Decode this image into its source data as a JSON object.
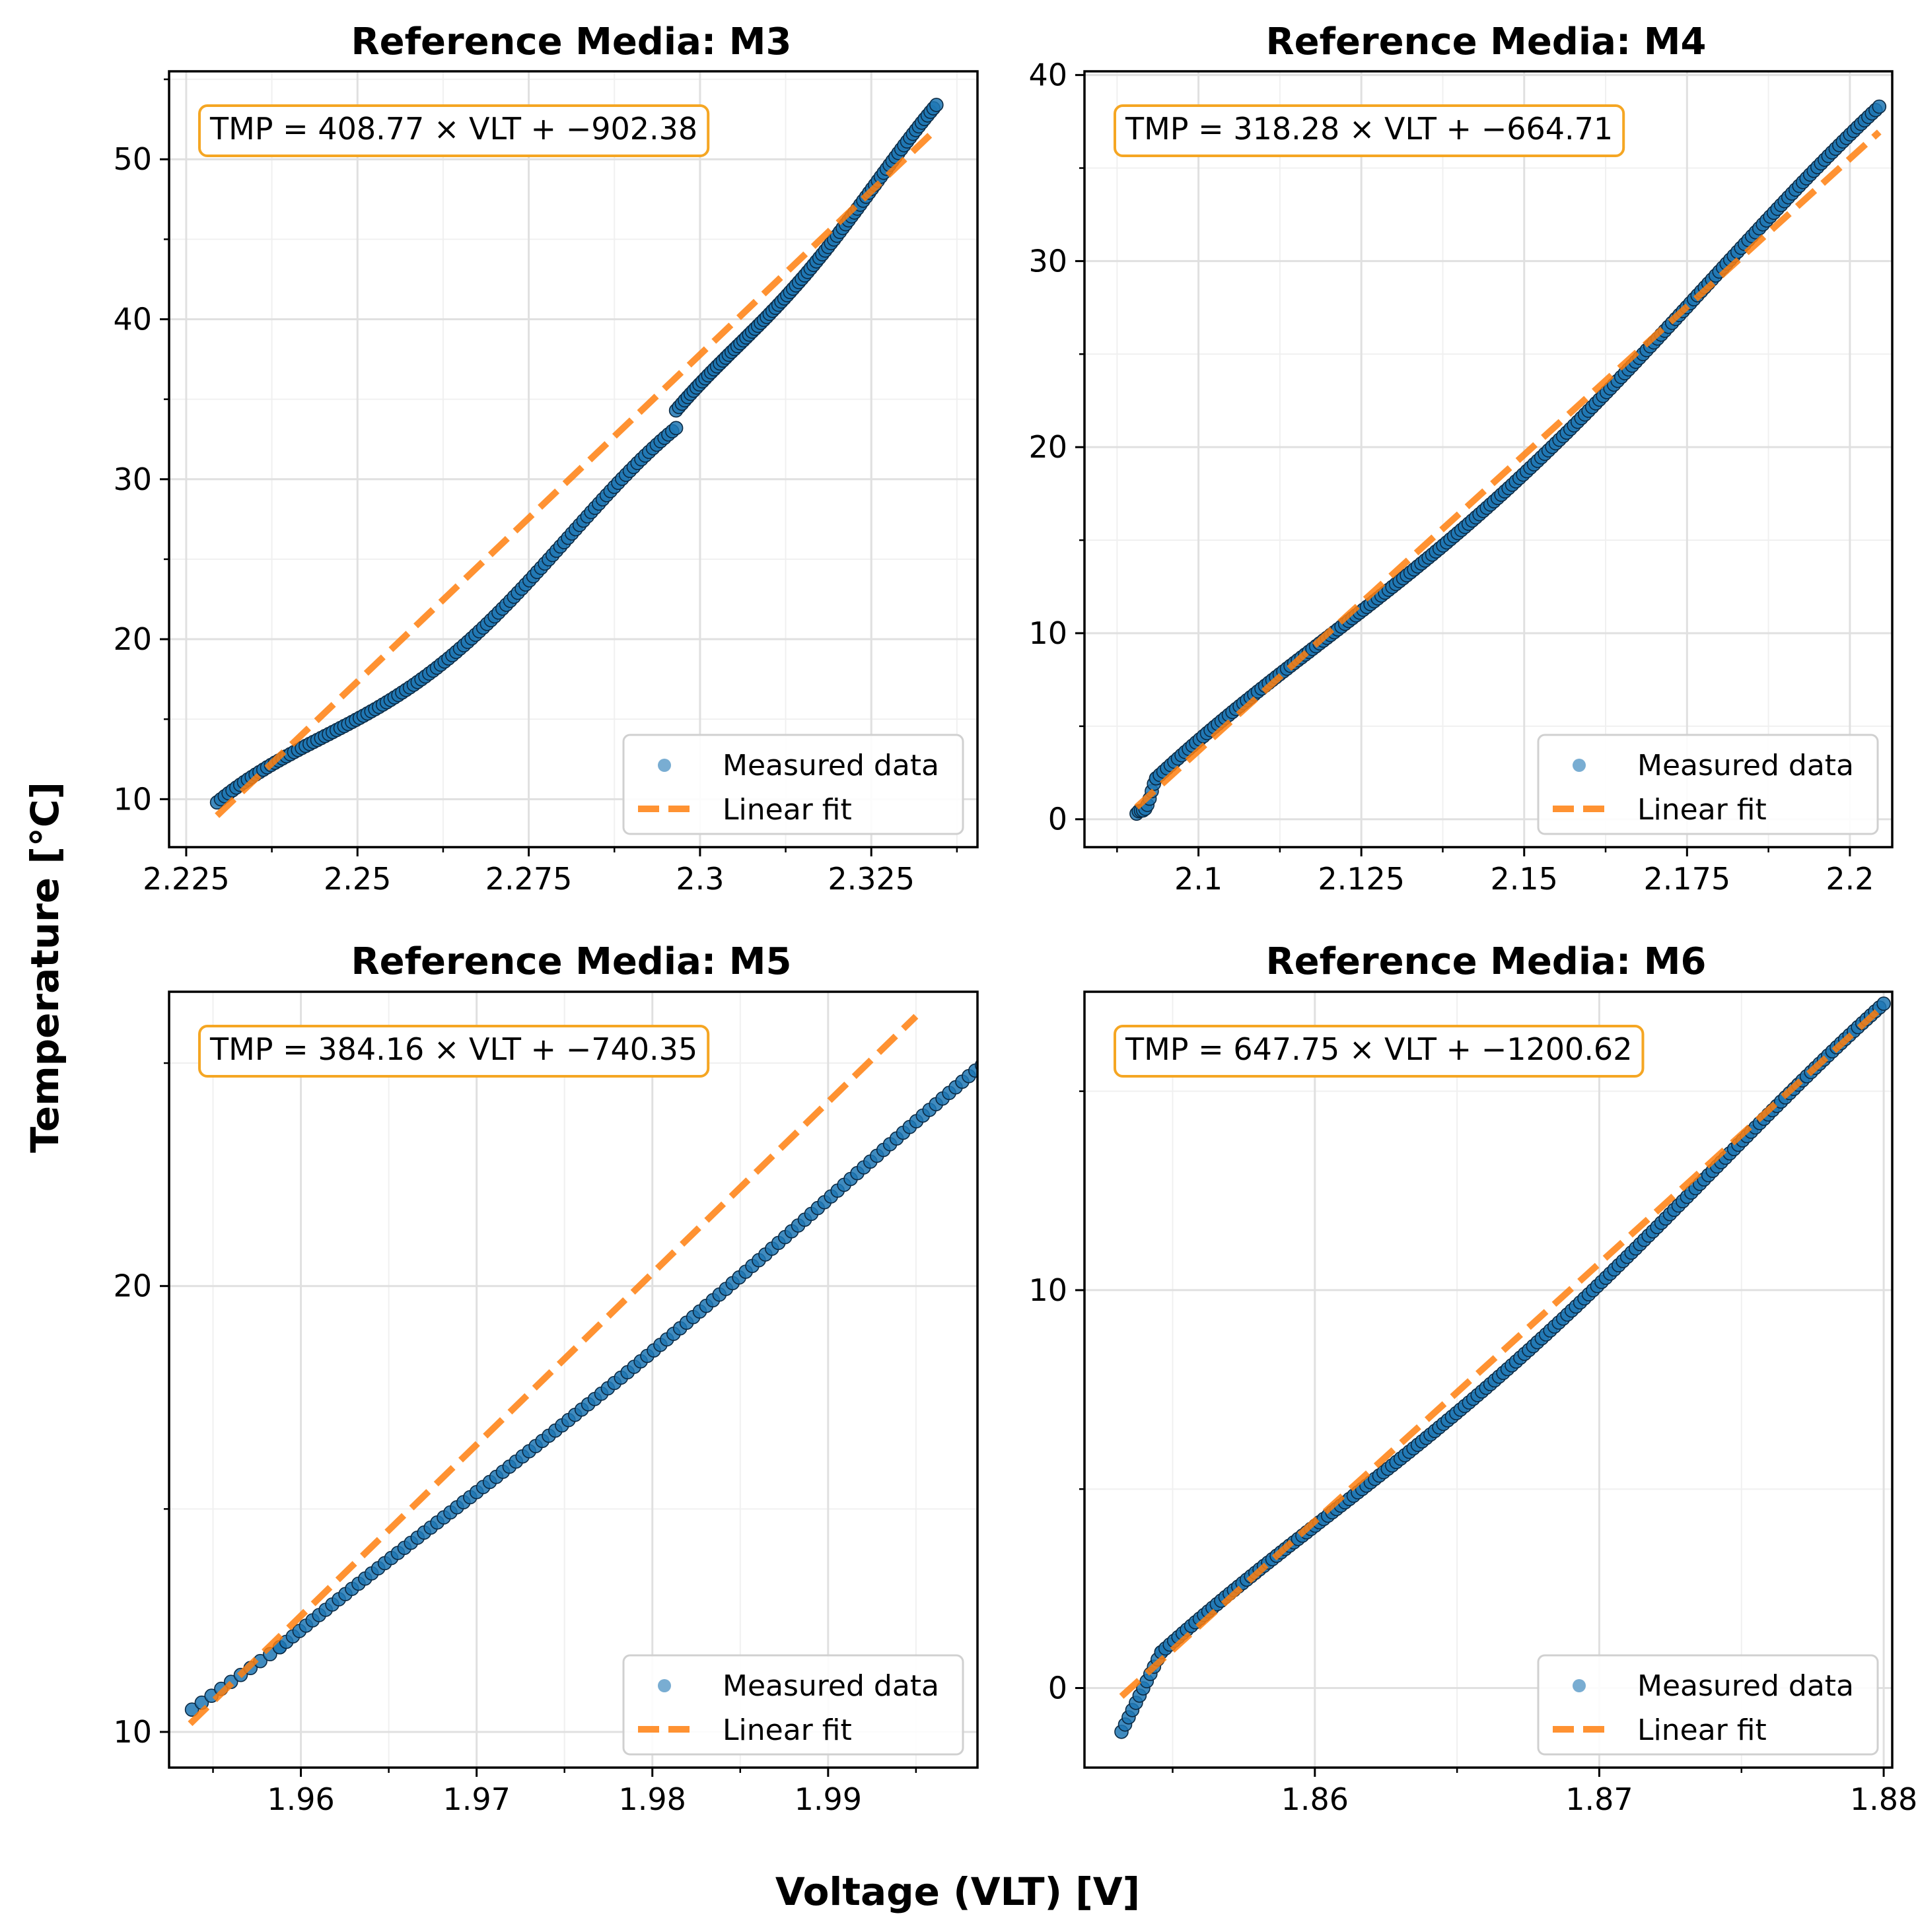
{
  "figure": {
    "xlabel": "Voltage (VLT) [V]",
    "ylabel": "Temperature [°C]"
  },
  "colors": {
    "points": "#1f77b4",
    "fit": "#ff7f0e",
    "annotation_border": "#f5a623",
    "grid": "#e0e0e0"
  },
  "legend": {
    "measured": "Measured data",
    "fit": "Linear fit"
  },
  "chart_data": [
    {
      "type": "scatter",
      "title": "Reference Media: M3",
      "equation": "TMP = 408.77 × VLT + −902.38",
      "slope": 408.77,
      "intercept": -902.38,
      "xlim": [
        2.2225,
        2.3405
      ],
      "ylim": [
        7,
        55.5
      ],
      "xticks": [
        2.225,
        2.25,
        2.275,
        2.3,
        2.325
      ],
      "xticklabels": [
        "2.225",
        "2.25",
        "2.275",
        "2.3",
        "2.325"
      ],
      "yticks": [
        10,
        20,
        30,
        40,
        50
      ],
      "yticklabels": [
        "10",
        "20",
        "30",
        "40",
        "50"
      ],
      "xminor": [
        2.2375,
        2.2625,
        2.2875,
        2.3125,
        2.3375
      ],
      "yminor": [
        15,
        25,
        35,
        45,
        55
      ],
      "fit_x": [
        2.2295,
        2.3345
      ],
      "segments": [
        {
          "x0": 2.2295,
          "x1": 2.2965,
          "y0": 9.8,
          "y1": 33.2,
          "n": 120,
          "bow": 1.4
        },
        {
          "x0": 2.2965,
          "x1": 2.3345,
          "y0": 34.3,
          "y1": 53.4,
          "n": 90,
          "bow": 0.5
        }
      ]
    },
    {
      "type": "scatter",
      "title": "Reference Media: M4",
      "equation": "TMP = 318.28 × VLT + −664.71",
      "slope": 318.28,
      "intercept": -664.71,
      "xlim": [
        2.0825,
        2.2065
      ],
      "ylim": [
        -1.5,
        40.2
      ],
      "xticks": [
        2.1,
        2.125,
        2.15,
        2.175,
        2.2
      ],
      "xticklabels": [
        "2.1",
        "2.125",
        "2.15",
        "2.175",
        "2.2"
      ],
      "yticks": [
        0,
        10,
        20,
        30,
        40
      ],
      "yticklabels": [
        "0",
        "10",
        "20",
        "30",
        "40"
      ],
      "xminor": [
        2.0875,
        2.1125,
        2.1375,
        2.1625,
        2.1875
      ],
      "yminor": [
        5,
        15,
        25,
        35
      ],
      "fit_x": [
        2.0905,
        2.2045
      ],
      "segments": [
        {
          "x0": 2.0905,
          "x1": 2.0935,
          "y0": 0.3,
          "y1": 2.2,
          "n": 10,
          "bow": 0.3
        },
        {
          "x0": 2.0935,
          "x1": 2.2045,
          "y0": 2.2,
          "y1": 38.3,
          "n": 200,
          "bow": 1.0
        }
      ]
    },
    {
      "type": "scatter",
      "title": "Reference Media: M5",
      "equation": "TMP = 384.16 × VLT + −740.35",
      "slope": 384.16,
      "intercept": -740.35,
      "xlim": [
        1.9525,
        1.9985
      ],
      "ylim": [
        9.2,
        26.6
      ],
      "xticks": [
        1.96,
        1.97,
        1.98,
        1.99
      ],
      "xticklabels": [
        "1.96",
        "1.97",
        "1.98",
        "1.99"
      ],
      "yticks": [
        10,
        20
      ],
      "yticklabels": [
        "10",
        "20"
      ],
      "xminor": [
        1.955,
        1.965,
        1.975,
        1.985,
        1.995
      ],
      "yminor": [
        15,
        25
      ],
      "fit_x": [
        1.9537,
        1.995
      ],
      "segments": [
        {
          "x0": 1.9538,
          "x1": 1.9588,
          "y0": 10.5,
          "y1": 11.9,
          "n": 10,
          "bow": 0
        },
        {
          "x0": 1.9588,
          "x1": 1.9995,
          "y0": 11.9,
          "y1": 25.2,
          "n": 110,
          "bow": 0.15
        }
      ]
    },
    {
      "type": "scatter",
      "title": "Reference Media: M6",
      "equation": "TMP = 647.75 × VLT + −1200.62",
      "slope": 647.75,
      "intercept": -1200.62,
      "xlim": [
        1.8519,
        1.8803
      ],
      "ylim": [
        -2.0,
        17.5
      ],
      "xticks": [
        1.86,
        1.87,
        1.88
      ],
      "xticklabels": [
        "1.86",
        "1.87",
        "1.88"
      ],
      "yticks": [
        0,
        10
      ],
      "yticklabels": [
        "0",
        "10"
      ],
      "xminor": [
        1.855,
        1.865,
        1.875
      ],
      "yminor": [
        5,
        15
      ],
      "fit_x": [
        1.8532,
        1.88
      ],
      "segments": [
        {
          "x0": 1.8532,
          "x1": 1.8546,
          "y0": -1.1,
          "y1": 0.9,
          "n": 12,
          "bow": 0
        },
        {
          "x0": 1.8546,
          "x1": 1.88,
          "y0": 0.9,
          "y1": 17.2,
          "n": 170,
          "bow": 0.35
        }
      ]
    }
  ]
}
